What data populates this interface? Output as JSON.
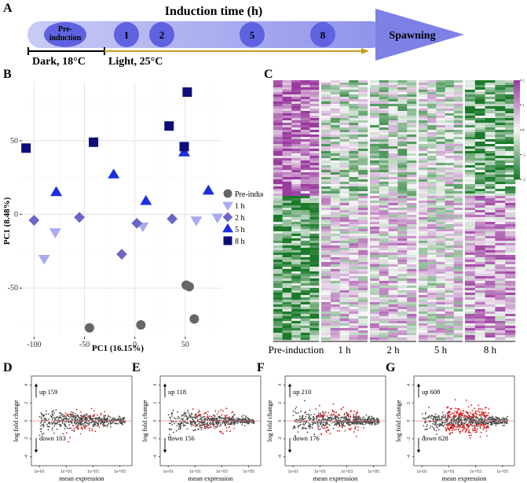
{
  "panels": {
    "a": "A",
    "b": "B",
    "c": "C",
    "d": "D",
    "e": "E",
    "f": "F",
    "g": "G"
  },
  "timeline": {
    "title": "Induction time (h)",
    "pre_line1": "Pre-",
    "pre_line2": "induction",
    "timepoints": [
      "1",
      "2",
      "5",
      "8"
    ],
    "end_label": "Spawning",
    "dark_label": "Dark, 18°C",
    "light_label": "Light, 25°C",
    "colors": {
      "arrow": "#b3b6f0",
      "circle": "#5f63e0",
      "light_arrow": "#c8a020"
    }
  },
  "chart_data": [
    {
      "type": "scatter",
      "panel": "B",
      "xlabel": "PC1 (16.15%)",
      "ylabel": "PC1 (8.48%)",
      "xlim": [
        -112,
        86
      ],
      "ylim": [
        -83,
        90
      ],
      "xticks": [
        -100,
        -50,
        0,
        50
      ],
      "yticks": [
        -50,
        0,
        50
      ],
      "legend_position": "right",
      "series": [
        {
          "name": "Pre-induction",
          "shape": "circle",
          "color": "#666666",
          "points": [
            [
              -45,
              -77
            ],
            [
              6,
              -75
            ],
            [
              51,
              -48
            ],
            [
              54,
              -49
            ],
            [
              59,
              -71
            ]
          ]
        },
        {
          "name": "1 h",
          "shape": "triangle-down",
          "color": "#aaaaf0",
          "points": [
            [
              -79,
              -12
            ],
            [
              -90,
              -30
            ],
            [
              8,
              -8
            ],
            [
              61,
              -4
            ],
            [
              82,
              -2
            ]
          ]
        },
        {
          "name": "2 h",
          "shape": "diamond",
          "color": "#6a66c8",
          "points": [
            [
              -100,
              -4
            ],
            [
              -55,
              -2
            ],
            [
              -13,
              -27
            ],
            [
              2,
              -6
            ],
            [
              37,
              -3
            ]
          ]
        },
        {
          "name": "5 h",
          "shape": "triangle-up",
          "color": "#1a2ee0",
          "points": [
            [
              -78,
              15
            ],
            [
              -21,
              27
            ],
            [
              11,
              9
            ],
            [
              49,
              42
            ],
            [
              73,
              16
            ]
          ]
        },
        {
          "name": "8 h",
          "shape": "square",
          "color": "#0d0d7a",
          "points": [
            [
              -108,
              45
            ],
            [
              -41,
              49
            ],
            [
              34,
              60
            ],
            [
              49,
              46
            ],
            [
              52,
              83
            ]
          ]
        }
      ]
    },
    {
      "type": "heatmap",
      "panel": "C",
      "groups": [
        "Pre-induction",
        "1 h",
        "2 h",
        "5 h",
        "8 h"
      ],
      "colorbar_ticks": [
        "2",
        "1",
        "0",
        "-1",
        "-2"
      ],
      "color_low": "#1a7a2a",
      "color_mid": "#f7f7f7",
      "color_high": "#9a3a9e"
    },
    {
      "type": "scatter",
      "panel": "D",
      "title": "",
      "xlabel": "mean expression",
      "ylabel": "log fold change",
      "xticks": [
        "1e-01",
        "1e+01",
        "1e+03",
        "1e+05"
      ],
      "yticks": [
        "-4",
        "-2",
        "0",
        "2",
        "4"
      ],
      "up_label": "up 159",
      "down_label": "down 103",
      "up": 159,
      "down": 103
    },
    {
      "type": "scatter",
      "panel": "E",
      "xlabel": "mean expression",
      "ylabel": "log fold change",
      "xticks": [
        "1e-01",
        "1e+01",
        "1e+03",
        "1e+05"
      ],
      "yticks": [
        "-4",
        "-2",
        "0",
        "2",
        "4"
      ],
      "up_label": "up 118",
      "down_label": "down 156",
      "up": 118,
      "down": 156
    },
    {
      "type": "scatter",
      "panel": "F",
      "xlabel": "mean expression",
      "ylabel": "log fold change",
      "xticks": [
        "1e-01",
        "1e+01",
        "1e+03",
        "1e+05"
      ],
      "yticks": [
        "-4",
        "-2",
        "0",
        "2",
        "4"
      ],
      "up_label": "up 210",
      "down_label": "down 176",
      "up": 210,
      "down": 176
    },
    {
      "type": "scatter",
      "panel": "G",
      "xlabel": "mean expression",
      "ylabel": "log fold change",
      "xticks": [
        "1e-01",
        "1e+01",
        "1e+03",
        "1e+05"
      ],
      "yticks": [
        "-4",
        "-2",
        "0",
        "2",
        "4"
      ],
      "up_label": "up 608",
      "down_label": "down 628",
      "up": 608,
      "down": 628
    }
  ]
}
